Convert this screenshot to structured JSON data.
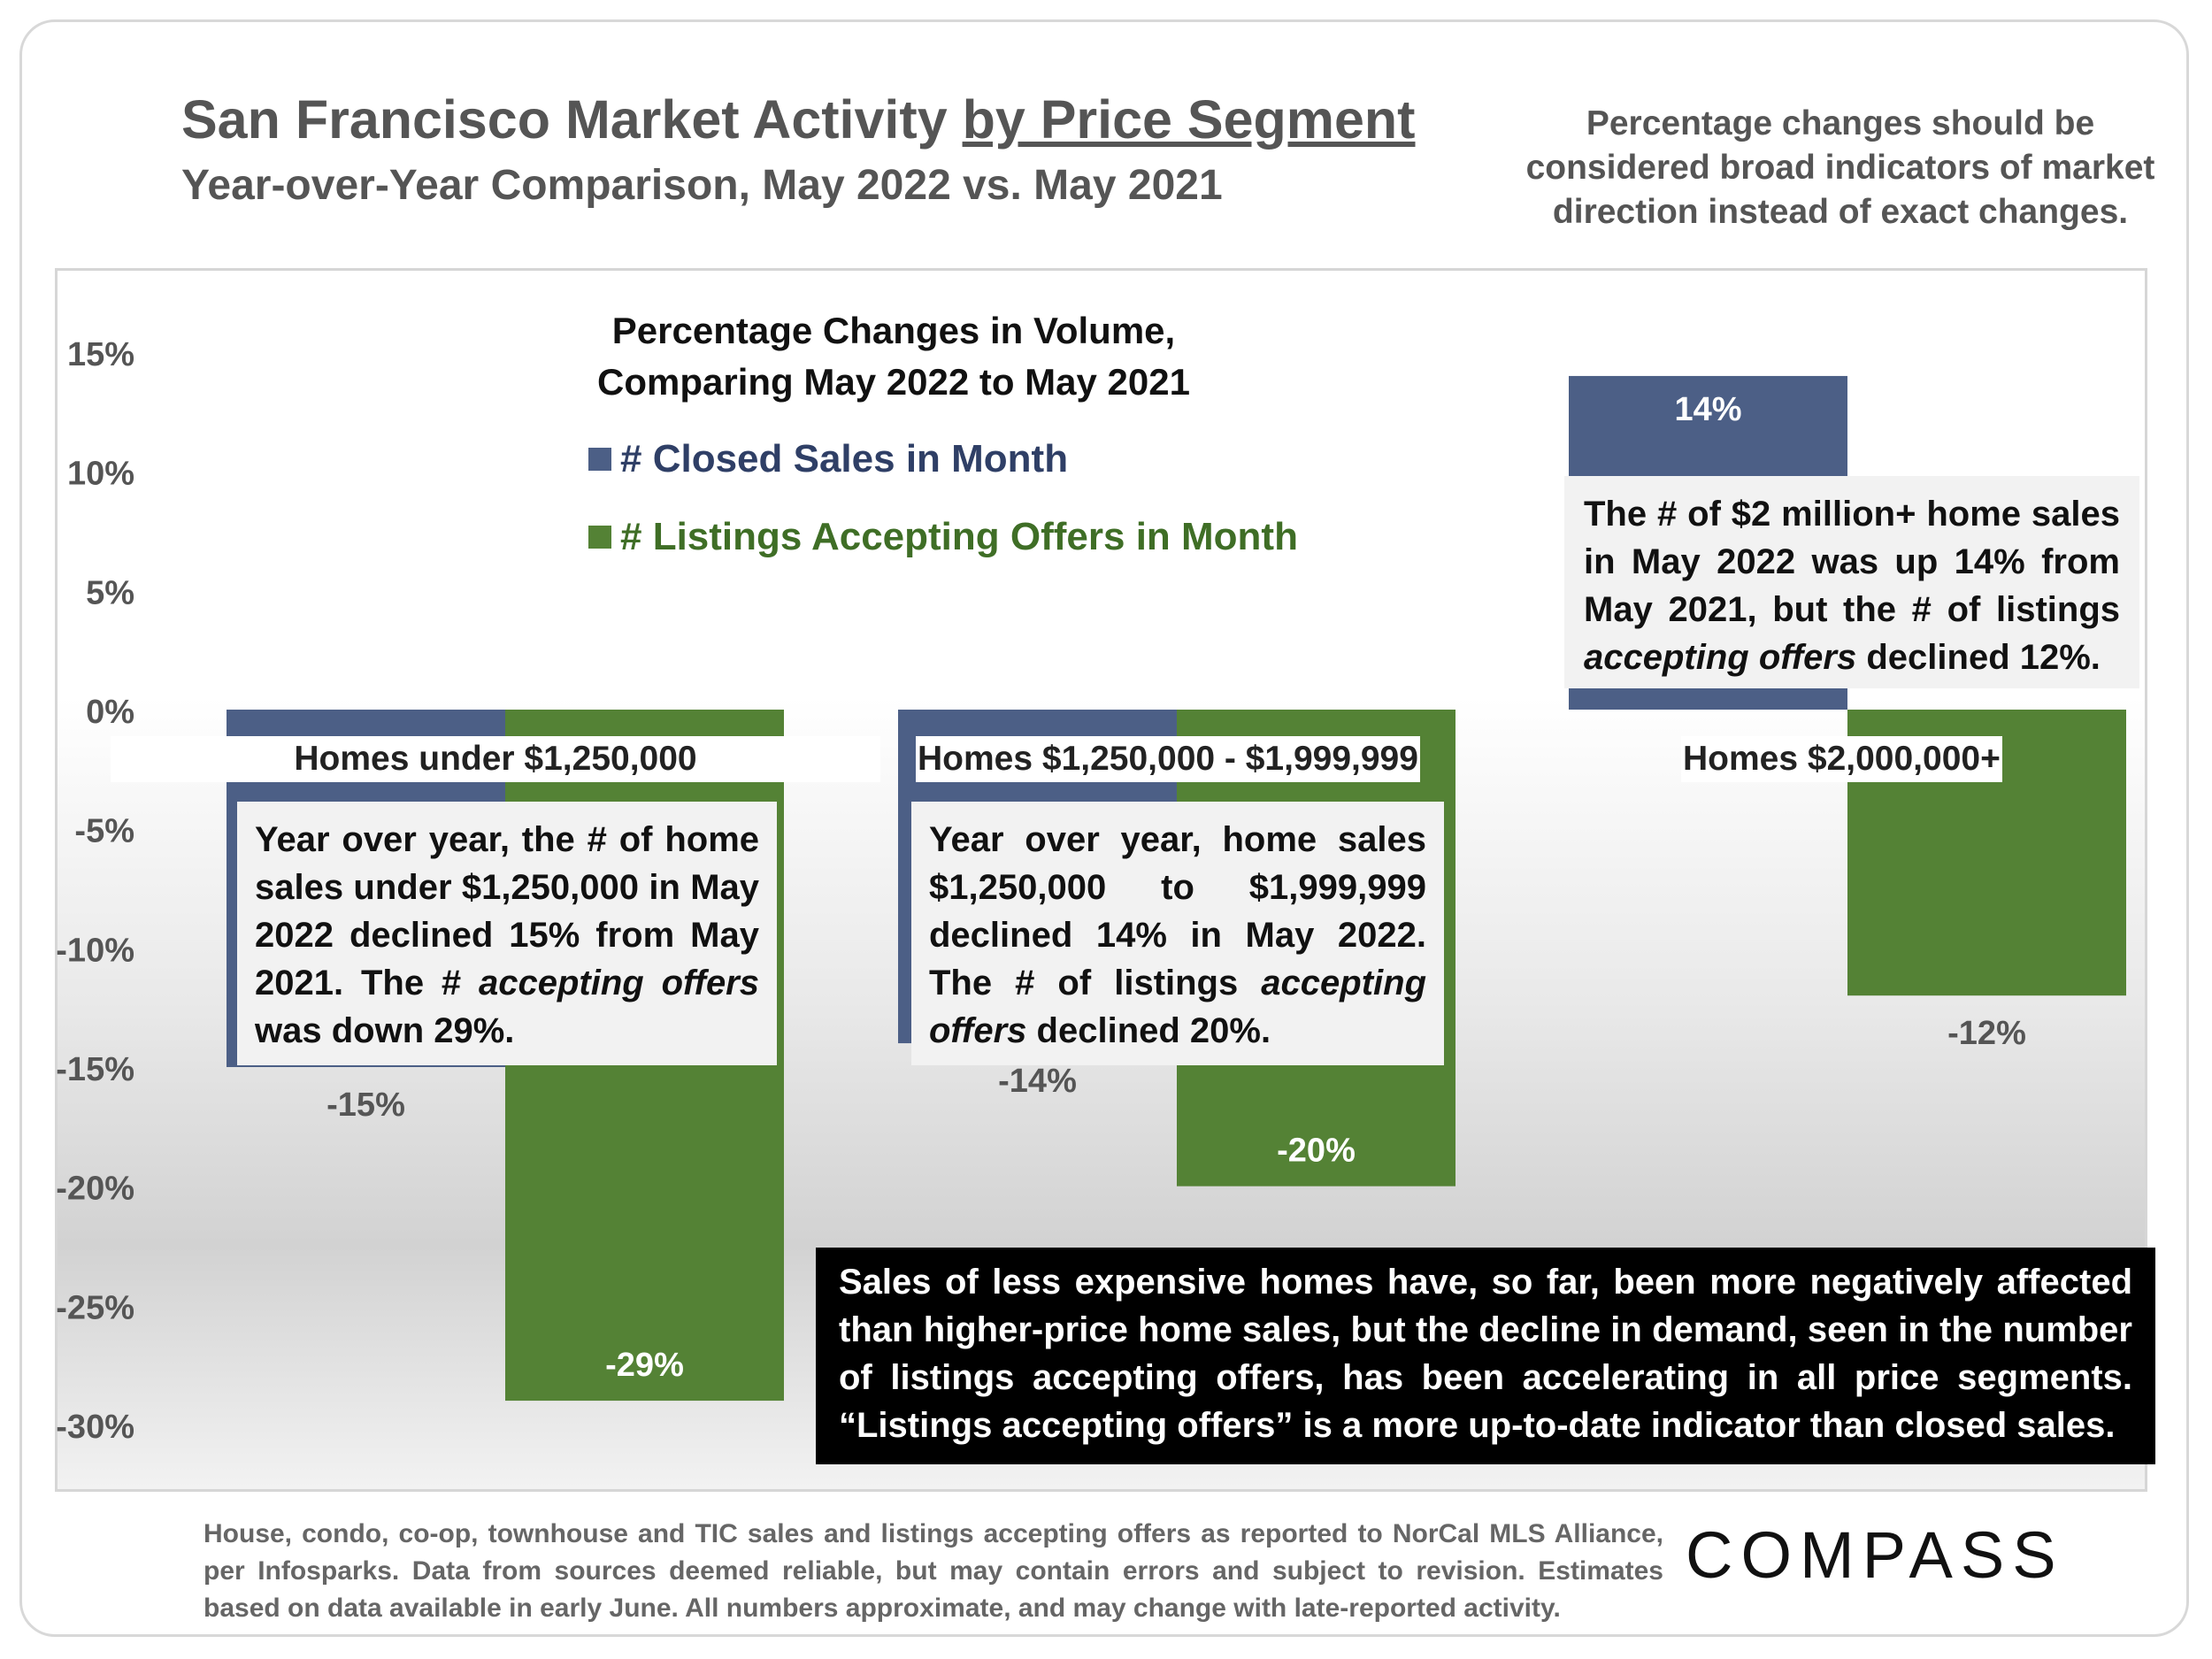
{
  "title": {
    "part1": "San Francisco Market Activity ",
    "part2": "by Price Segment"
  },
  "subtitle": "Year-over-Year Comparison, May 2022 vs. May 2021",
  "note": "Percentage changes should be considered broad indicators of market direction instead of exact changes.",
  "chart_data": {
    "type": "bar",
    "title": "Percentage Changes in Volume, Comparing May 2022 to May 2021",
    "title_line1": "Percentage Changes in Volume,",
    "title_line2": "Comparing May 2022 to May 2021",
    "categories": [
      "Homes under $1,250,000",
      "Homes $1,250,000 - $1,999,999",
      "Homes $2,000,000+"
    ],
    "series": [
      {
        "name": "# Closed Sales in Month",
        "color": "#4c5f86",
        "values": [
          -15,
          -14,
          14
        ],
        "labels": [
          "-15%",
          "-14%",
          "14%"
        ]
      },
      {
        "name": "# Listings Accepting Offers in Month",
        "color": "#548235",
        "values": [
          -29,
          -20,
          -12
        ],
        "labels": [
          "-29%",
          "-20%",
          "-12%"
        ]
      }
    ],
    "ylim": [
      -30,
      15
    ],
    "yticks": [
      15,
      10,
      5,
      0,
      -5,
      -10,
      -15,
      -20,
      -25,
      -30
    ],
    "ytick_labels": [
      "15%",
      "10%",
      "5%",
      "0%",
      "-5%",
      "-10%",
      "-15%",
      "-20%",
      "-25%",
      "-30%"
    ],
    "xlabel": "",
    "ylabel": "",
    "legend_position": "top-center"
  },
  "annotations": {
    "seg1": [
      "Year over year, the # of home sales under $1,250,000 in May 2022 declined 15% from May 2021. The # ",
      "accepting offers",
      " was down 29%."
    ],
    "seg2": [
      "Year over year, home sales $1,250,000 to $1,999,999 declined 14% in May 2022. The # of listings ",
      "accepting offers",
      " declined 20%."
    ],
    "seg3": [
      "The # of $2 million+ home sales in May 2022 was up 14% from May 2021, but the # of listings ",
      "accepting offers",
      " declined 12%."
    ],
    "summary": "Sales of less expensive homes have, so far, been more negatively affected than higher-price home sales, but the decline in demand, seen in the number of listings accepting offers, has been accelerating in all price segments. “Listings accepting offers” is a more up-to-date indicator than closed sales."
  },
  "footer": "House, condo, co-op, townhouse and TIC sales and listings accepting offers as reported to NorCal MLS Alliance, per Infosparks. Data from sources deemed reliable, but may contain errors and subject to revision. Estimates based on data available in early June. All numbers approximate, and may change with late-reported activity.",
  "logo": "COMPASS"
}
